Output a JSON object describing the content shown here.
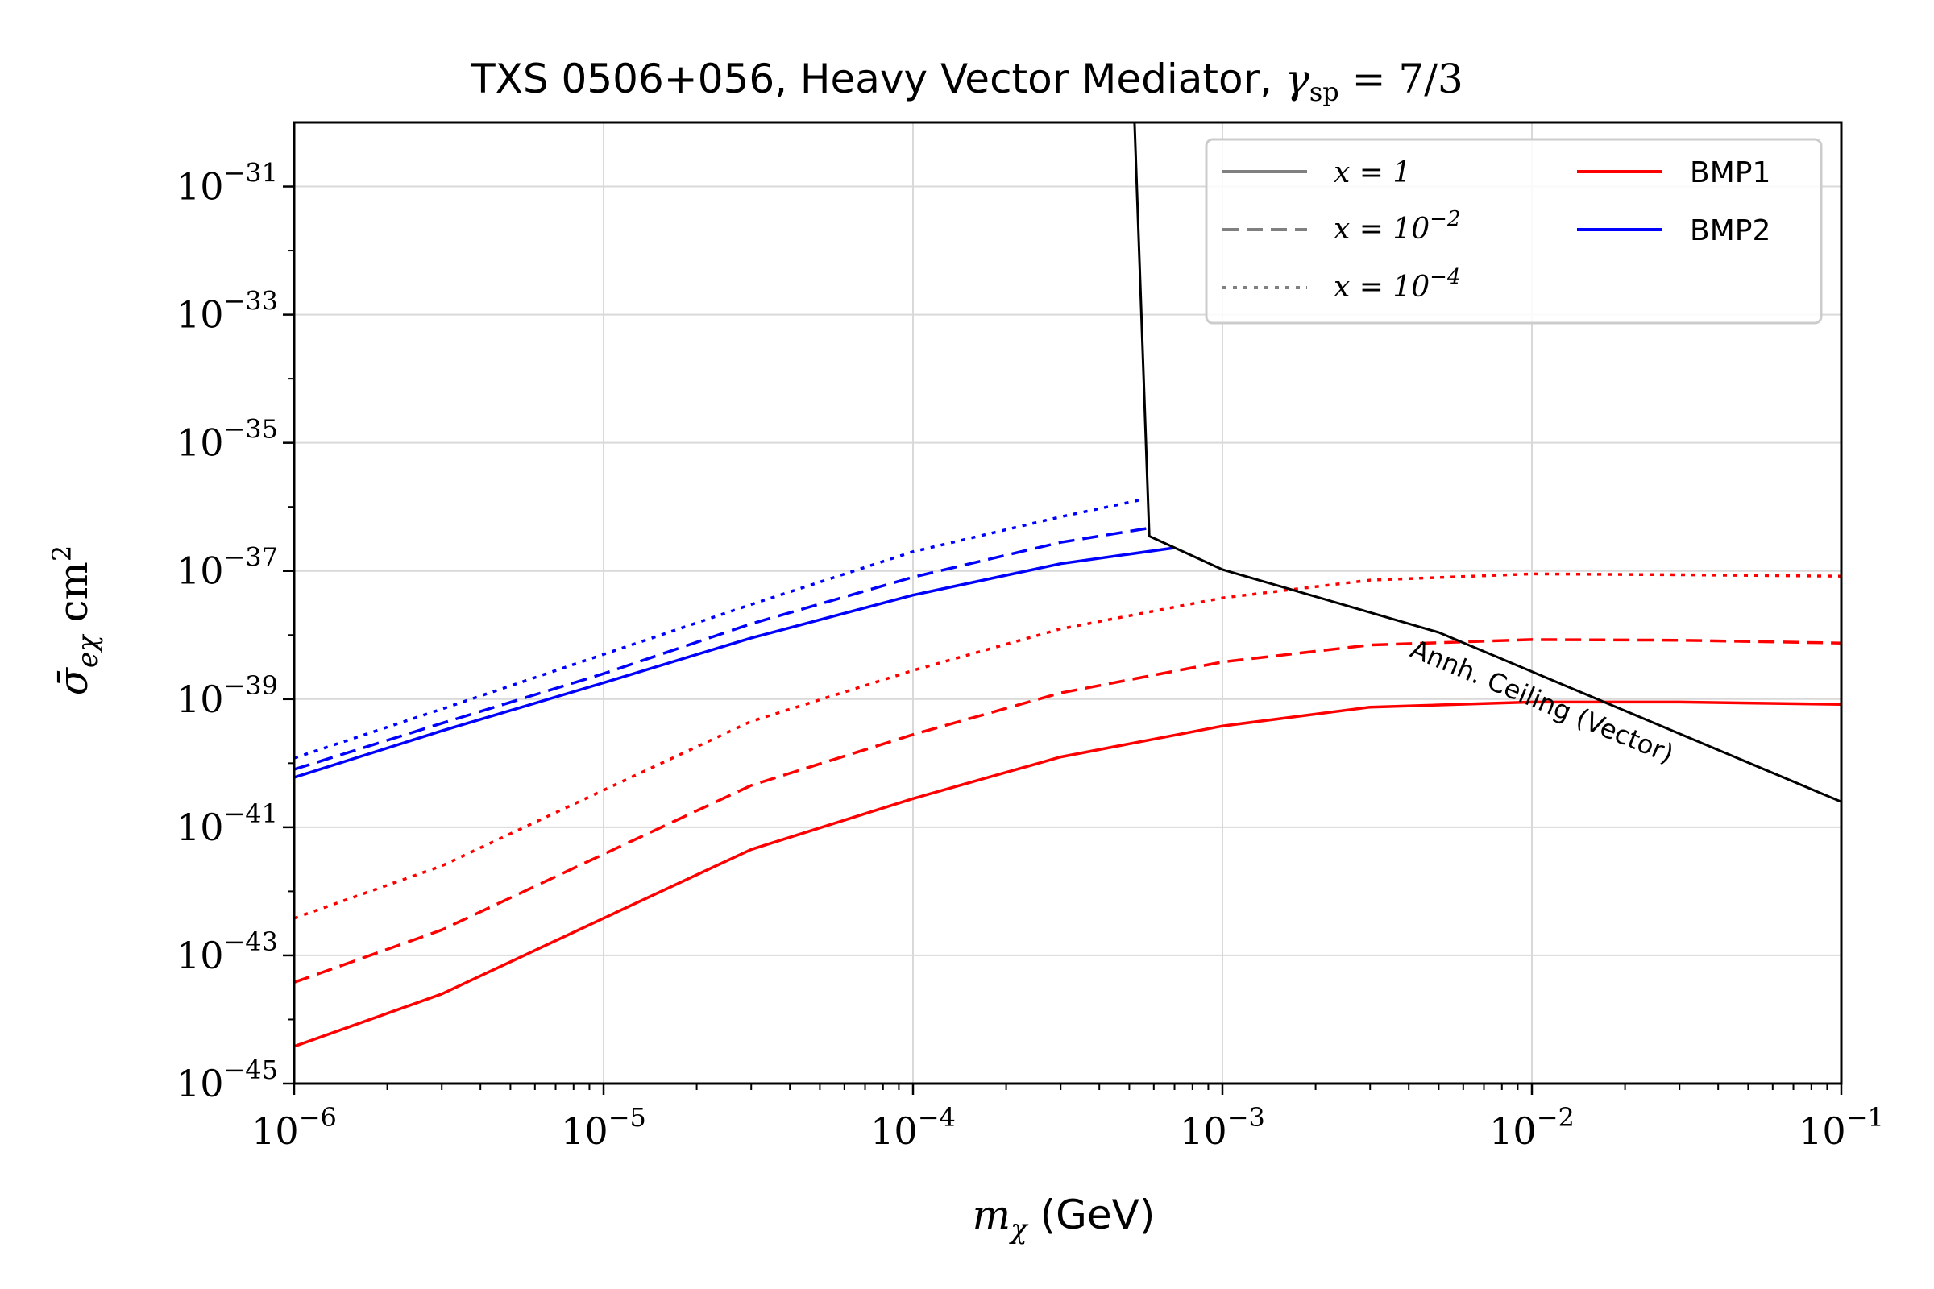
{
  "chart_data": {
    "type": "line",
    "title_prefix": "TXS 0506+056, Heavy Vector Mediator, ",
    "title_math": "γ",
    "title_math_sub": "sp",
    "title_math_rhs": " = 7/3",
    "xlabel_math": "m",
    "xlabel_math_sub": "χ",
    "xlabel_text": " (GeV)",
    "ylabel": "σ̄",
    "ylabel_sub": "eχ",
    "ylabel_unit": " cm",
    "ylabel_unit_exp": "2",
    "x_scale": "log",
    "y_scale": "log",
    "xlim": [
      1e-06,
      0.1
    ],
    "ylim": [
      1e-45,
      1e-30
    ],
    "grid": true,
    "x_ticks": [
      {
        "base": "10",
        "exp": "−6"
      },
      {
        "base": "10",
        "exp": "−5"
      },
      {
        "base": "10",
        "exp": "−4"
      },
      {
        "base": "10",
        "exp": "−3"
      },
      {
        "base": "10",
        "exp": "−2"
      },
      {
        "base": "10",
        "exp": "−1"
      }
    ],
    "y_ticks": [
      {
        "base": "10",
        "exp": "−45"
      },
      {
        "base": "10",
        "exp": "−43"
      },
      {
        "base": "10",
        "exp": "−41"
      },
      {
        "base": "10",
        "exp": "−39"
      },
      {
        "base": "10",
        "exp": "−37"
      },
      {
        "base": "10",
        "exp": "−35"
      },
      {
        "base": "10",
        "exp": "−33"
      },
      {
        "base": "10",
        "exp": "−31"
      }
    ],
    "legend_position": "top-right",
    "legend": {
      "styles": [
        {
          "label_math": "x = 1",
          "dash": "solid"
        },
        {
          "label_math": "x = 10",
          "label_exp": "−2",
          "dash": "dashed"
        },
        {
          "label_math": "x = 10",
          "label_exp": "−4",
          "dash": "dotted"
        }
      ],
      "colors": [
        {
          "label": "BMP1",
          "color": "#ff0000"
        },
        {
          "label": "BMP2",
          "color": "#0000ff"
        }
      ]
    },
    "annotation": "Annh. Ceiling (Vector)",
    "series": [
      {
        "group": "BMP1",
        "style": "solid",
        "color": "#ff0000",
        "x": [
          1e-06,
          3e-06,
          1e-05,
          3e-05,
          0.0001,
          0.0003,
          0.001,
          0.003,
          0.01,
          0.03,
          0.1
        ],
        "y": [
          3.8e-45,
          2.5e-44,
          3.8e-43,
          4.5e-42,
          2.8e-41,
          1.25e-40,
          3.8e-40,
          7.5e-40,
          9e-40,
          9e-40,
          8.3e-40
        ]
      },
      {
        "group": "BMP1",
        "style": "dashed",
        "color": "#ff0000",
        "x": [
          1e-06,
          3e-06,
          1e-05,
          3e-05,
          0.0001,
          0.0003,
          0.001,
          0.003,
          0.01,
          0.03,
          0.1
        ],
        "y": [
          3.8e-44,
          2.5e-43,
          3.8e-42,
          4.5e-41,
          2.8e-40,
          1.25e-39,
          3.8e-39,
          7e-39,
          8.5e-39,
          8.3e-39,
          7.5e-39
        ]
      },
      {
        "group": "BMP1",
        "style": "dotted",
        "color": "#ff0000",
        "x": [
          1e-06,
          3e-06,
          1e-05,
          3e-05,
          0.0001,
          0.0003,
          0.001,
          0.003,
          0.01,
          0.03,
          0.1
        ],
        "y": [
          3.8e-43,
          2.5e-42,
          3.8e-41,
          4.5e-40,
          2.8e-39,
          1.25e-38,
          3.8e-38,
          7.2e-38,
          9e-38,
          8.7e-38,
          8.3e-38
        ]
      },
      {
        "group": "BMP2",
        "style": "solid",
        "color": "#0000ff",
        "x": [
          1e-06,
          3e-06,
          1e-05,
          3e-05,
          0.0001,
          0.0003,
          0.0007
        ],
        "y": [
          6e-41,
          3.2e-40,
          1.8e-39,
          9e-39,
          4.2e-38,
          1.3e-37,
          2.3e-37
        ]
      },
      {
        "group": "BMP2",
        "style": "dashed",
        "color": "#0000ff",
        "x": [
          1e-06,
          3e-06,
          1e-05,
          3e-05,
          0.0001,
          0.0003,
          0.0006
        ],
        "y": [
          8e-41,
          4.2e-40,
          2.5e-39,
          1.5e-38,
          8e-38,
          2.8e-37,
          4.8e-37
        ]
      },
      {
        "group": "BMP2",
        "style": "dotted",
        "color": "#0000ff",
        "x": [
          1e-06,
          3e-06,
          1e-05,
          3e-05,
          0.0001,
          0.0003,
          0.00055
        ],
        "y": [
          1.2e-40,
          7e-40,
          5e-39,
          3e-38,
          2e-37,
          7e-37,
          1.3e-36
        ]
      },
      {
        "group": "ceiling",
        "style": "solid",
        "color": "#000000",
        "x": [
          0.00052,
          0.00058,
          0.001,
          0.005,
          0.1
        ],
        "y": [
          1e-30,
          3.5e-37,
          1.05e-37,
          1.1e-38,
          2.5e-41
        ]
      }
    ]
  }
}
